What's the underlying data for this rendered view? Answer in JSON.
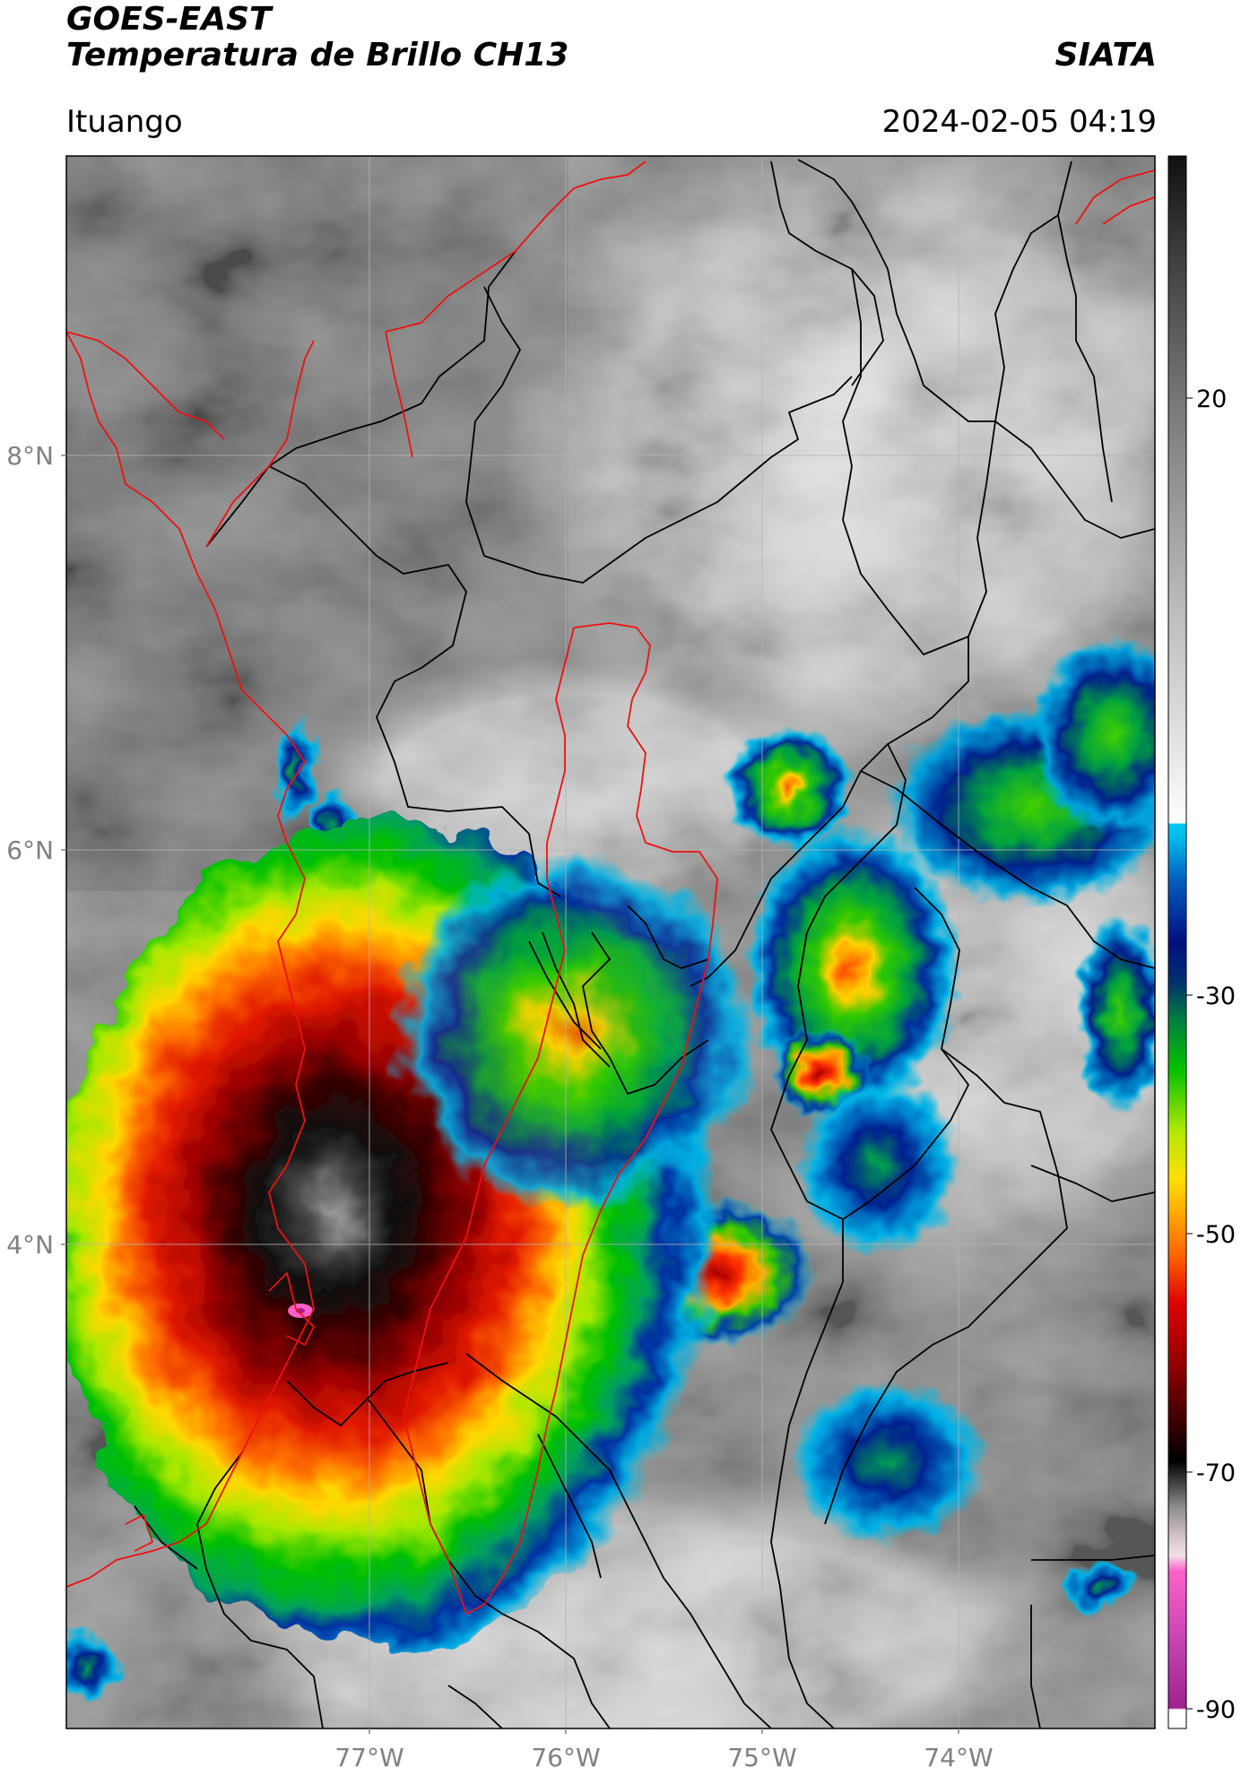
{
  "header": {
    "line1": "GOES-EAST",
    "line2": "Temperatura de Brillo CH13",
    "agency": "SIATA",
    "location": "Ituango",
    "datetime": "2024-02-05 04:19"
  },
  "axes": {
    "lat_labels": [
      "8°N",
      "6°N",
      "4°N"
    ],
    "lon_labels": [
      "77°W",
      "76°W",
      "75°W",
      "74°W"
    ]
  },
  "colorbar": {
    "tick_labels": [
      "20",
      "-30",
      "-50",
      "-70",
      "-90"
    ],
    "range": [
      -92,
      43
    ],
    "colors": {
      "warm_gray_top": "#2a2a2a",
      "light_gray": "#e8e8e8",
      "cyan": "#00bfe8",
      "dark_blue": "#00107e",
      "green": "#00c000",
      "yellow": "#ffe000",
      "orange": "#ff7000",
      "red": "#e00000",
      "dark_red": "#5a0000",
      "black": "#000000",
      "pink": "#ff60c8",
      "purple": "#901890"
    }
  },
  "map_colors": {
    "border_red": "#ee1111",
    "border_black": "#000000",
    "grid": "#b4b4b4"
  }
}
